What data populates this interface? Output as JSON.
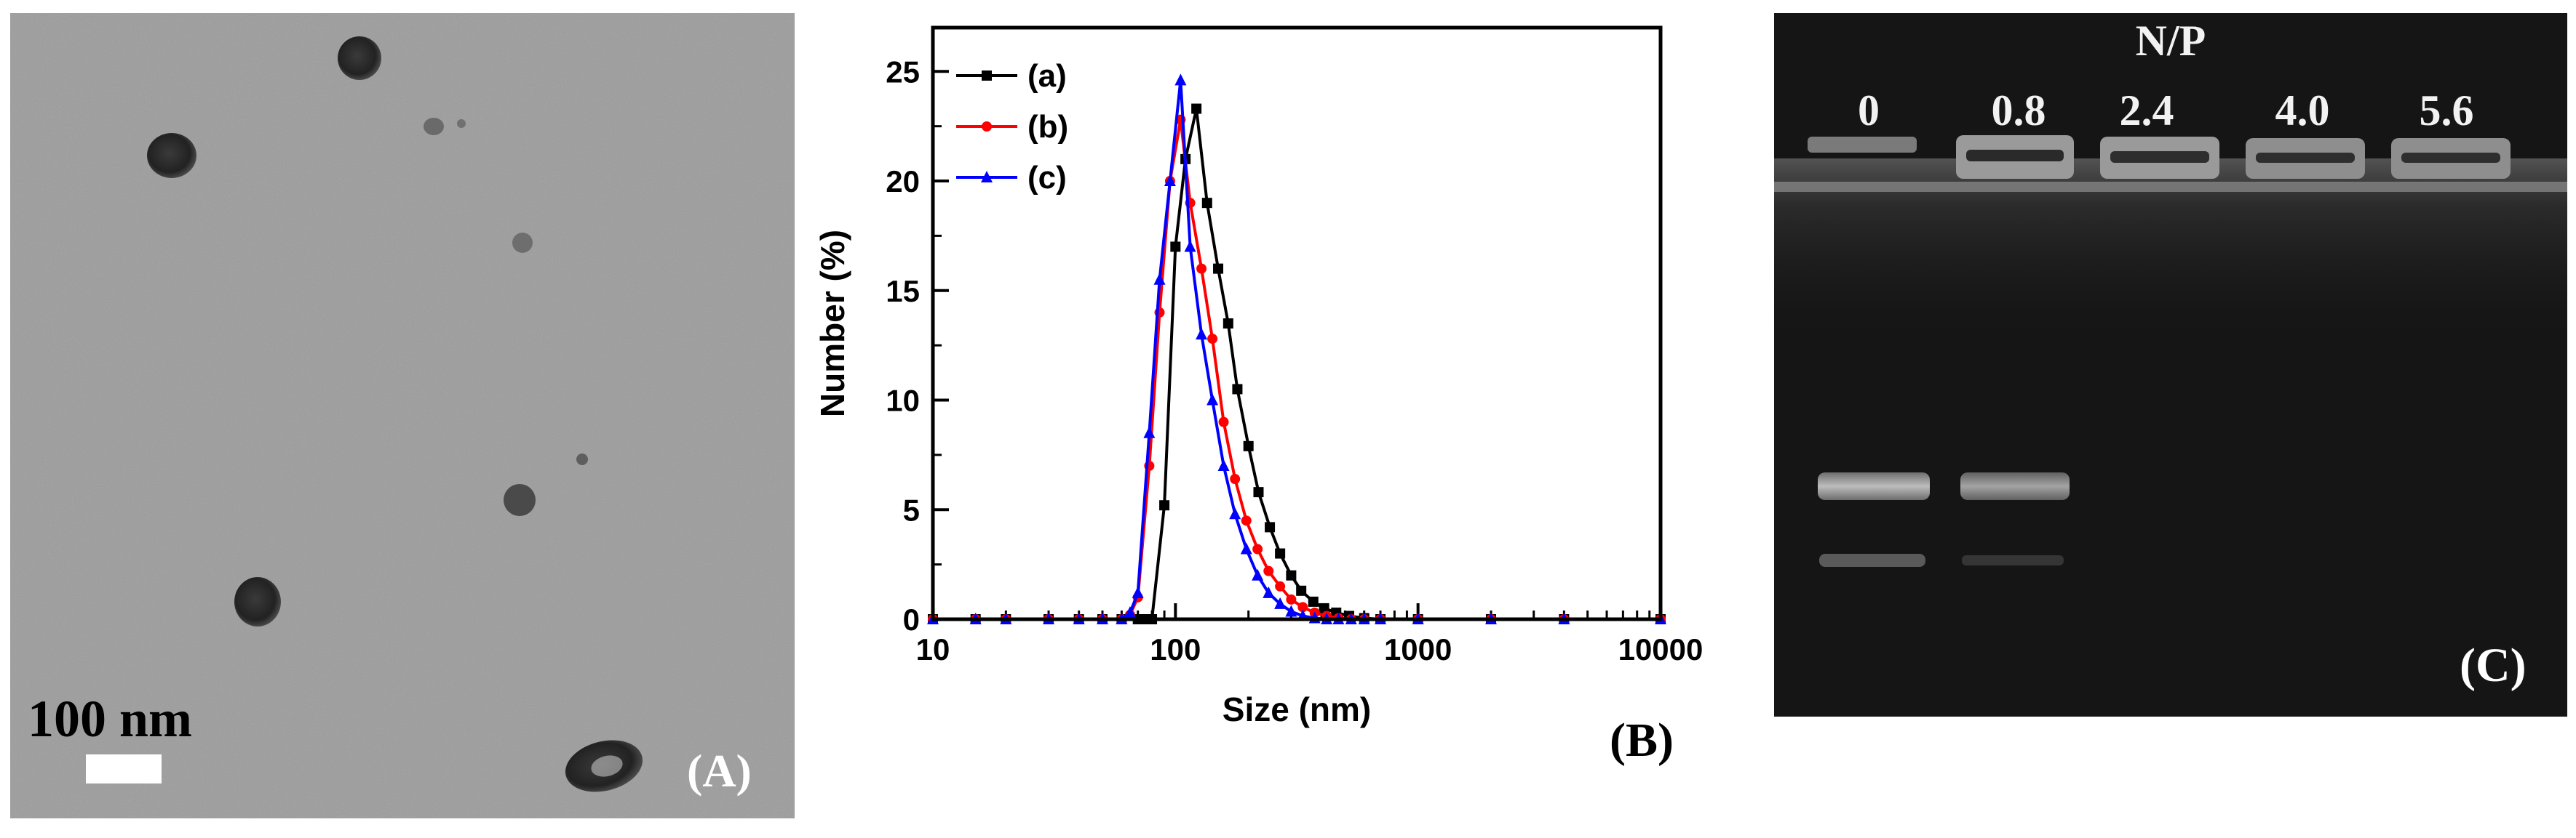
{
  "panel_a": {
    "scale_bar_label": "100 nm",
    "panel_label": "(A)"
  },
  "panel_b": {
    "panel_label": "(B)"
  },
  "panel_c": {
    "axis_title": "N/P",
    "lanes": [
      "0",
      "0.8",
      "2.4",
      "4.0",
      "5.6"
    ],
    "panel_label": "(C)"
  },
  "colors": {
    "series_a": "#000000",
    "series_b": "#ff0000",
    "series_c": "#0000ff",
    "tem_background": "#a6a6a6",
    "gel_background": "#151515"
  },
  "chart_data": {
    "type": "line",
    "title": "",
    "xlabel": "Size (nm)",
    "ylabel": "Number (%)",
    "xscale": "log",
    "xlim": [
      10,
      10000
    ],
    "ylim": [
      0,
      27
    ],
    "xticks": [
      "10",
      "100",
      "1000",
      "10000"
    ],
    "yticks": [
      "0",
      "5",
      "10",
      "15",
      "20",
      "25"
    ],
    "legend_position": "top-left",
    "series": [
      {
        "name": "(a)",
        "color": "#000000",
        "marker": "square",
        "x": [
          10,
          15,
          20,
          30,
          40,
          50,
          60,
          70,
          75,
          80,
          90,
          100,
          110,
          122,
          135,
          150,
          165,
          180,
          200,
          220,
          245,
          270,
          300,
          330,
          370,
          410,
          460,
          520,
          600,
          700,
          1000,
          2000,
          4000,
          10000
        ],
        "y": [
          0,
          0,
          0,
          0,
          0,
          0,
          0,
          0,
          0,
          0,
          5.2,
          17.0,
          21.0,
          23.3,
          19.0,
          16.0,
          13.5,
          10.5,
          7.9,
          5.8,
          4.2,
          3.0,
          2.0,
          1.3,
          0.8,
          0.5,
          0.3,
          0.15,
          0.05,
          0,
          0,
          0,
          0,
          0
        ]
      },
      {
        "name": "(b)",
        "color": "#ff0000",
        "marker": "circle",
        "x": [
          10,
          15,
          20,
          30,
          40,
          50,
          60,
          65,
          70,
          78,
          86,
          95,
          105,
          115,
          128,
          142,
          158,
          176,
          196,
          218,
          242,
          270,
          300,
          335,
          375,
          420,
          470,
          530,
          600,
          700,
          1000,
          2000,
          4000,
          10000
        ],
        "y": [
          0,
          0,
          0,
          0,
          0,
          0,
          0,
          0.2,
          1.0,
          7.0,
          14.0,
          20.0,
          22.8,
          19.0,
          16.0,
          12.8,
          9.0,
          6.4,
          4.5,
          3.2,
          2.2,
          1.5,
          0.9,
          0.55,
          0.3,
          0.15,
          0.05,
          0,
          0,
          0,
          0,
          0,
          0,
          0
        ]
      },
      {
        "name": "(c)",
        "color": "#0000ff",
        "marker": "triangle",
        "x": [
          10,
          15,
          20,
          30,
          40,
          50,
          60,
          65,
          70,
          78,
          86,
          95,
          105,
          115,
          128,
          142,
          158,
          176,
          196,
          218,
          242,
          270,
          300,
          335,
          375,
          420,
          470,
          530,
          600,
          700,
          1000,
          2000,
          4000,
          10000
        ],
        "y": [
          0,
          0,
          0,
          0,
          0,
          0,
          0,
          0.3,
          1.2,
          8.5,
          15.5,
          20.0,
          24.6,
          17.0,
          13.0,
          10.0,
          7.0,
          4.8,
          3.2,
          2.0,
          1.2,
          0.7,
          0.35,
          0.15,
          0.05,
          0,
          0,
          0,
          0,
          0,
          0,
          0,
          0,
          0
        ]
      }
    ]
  }
}
